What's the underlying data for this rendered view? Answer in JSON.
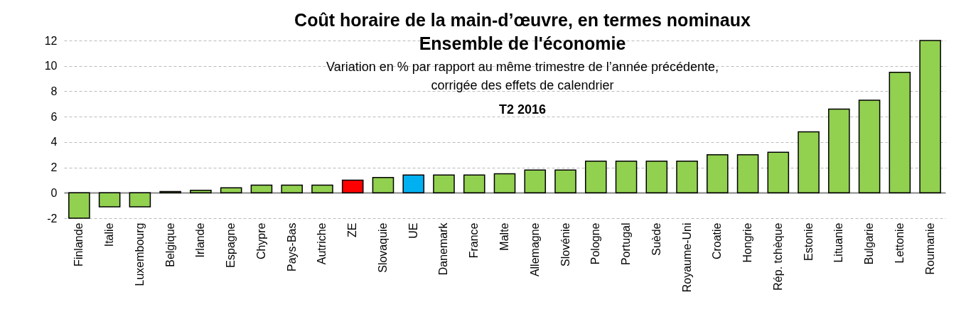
{
  "chart_data": {
    "type": "bar",
    "title": "Coût horaire de la main-d’œuvre, en termes nominaux\nEnsemble de l'économie",
    "subtitle": "Variation en % par rapport au même trimestre de l’année précédente,\ncorrigée des effets de calendrier",
    "annotations": [
      "T2 2016"
    ],
    "categories": [
      "Finlande",
      "Italie",
      "Luxembourg",
      "Belgique",
      "Irlande",
      "Espagne",
      "Chypre",
      "Pays-Bas",
      "Autriche",
      "ZE",
      "Slovaquie",
      "UE",
      "Danemark",
      "France",
      "Malte",
      "Allemagne",
      "Slovénie",
      "Pologne",
      "Portugal",
      "Suède",
      "Royaume-Uni",
      "Croatie",
      "Hongrie",
      "Rép. tchèque",
      "Estonie",
      "Lituanie",
      "Bulgarie",
      "Lettonie",
      "Roumanie"
    ],
    "values": [
      -2.0,
      -1.1,
      -1.1,
      0.1,
      0.2,
      0.4,
      0.6,
      0.6,
      0.6,
      1.0,
      1.2,
      1.4,
      1.4,
      1.4,
      1.5,
      1.8,
      1.8,
      2.5,
      2.5,
      2.5,
      2.5,
      3.0,
      3.0,
      3.2,
      4.8,
      6.6,
      7.3,
      9.5,
      12.0
    ],
    "colors": [
      "#92d050",
      "#92d050",
      "#92d050",
      "#92d050",
      "#92d050",
      "#92d050",
      "#92d050",
      "#92d050",
      "#92d050",
      "#ff0000",
      "#92d050",
      "#00b0f0",
      "#92d050",
      "#92d050",
      "#92d050",
      "#92d050",
      "#92d050",
      "#92d050",
      "#92d050",
      "#92d050",
      "#92d050",
      "#92d050",
      "#92d050",
      "#92d050",
      "#92d050",
      "#92d050",
      "#92d050",
      "#92d050",
      "#92d050"
    ],
    "ylim": [
      -2,
      12
    ],
    "yticks": [
      -2,
      0,
      2,
      4,
      6,
      8,
      10,
      12
    ],
    "grid": "y"
  }
}
